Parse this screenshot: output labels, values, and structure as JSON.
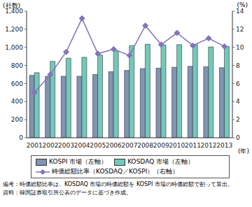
{
  "chart_data": {
    "type": "bar",
    "categories": [
      "2001",
      "2002",
      "2003",
      "2004",
      "2005",
      "2006",
      "2007",
      "2008",
      "2009",
      "2010",
      "2011",
      "2012",
      "2013"
    ],
    "series": [
      {
        "name": "KOSPI 市場（左軸）",
        "type": "bar",
        "color": "#8094b4",
        "values": [
          690,
          680,
          680,
          680,
          700,
          730,
          745,
          765,
          770,
          780,
          790,
          785,
          775
        ]
      },
      {
        "name": "KOSDAQ 市場（左軸）",
        "type": "bar",
        "color": "#72c9bb",
        "values": [
          720,
          845,
          880,
          890,
          915,
          960,
          1020,
          1035,
          1025,
          1030,
          1030,
          1005,
          1010
        ]
      },
      {
        "name": "時価総額比率（KOSDAQ／KOSPI）（右軸）",
        "type": "line",
        "axis": "y2",
        "marker": "diamond",
        "color": "#8474b8",
        "values": [
          5.0,
          7.0,
          9.5,
          13.2,
          9.3,
          9.8,
          9.1,
          12.4,
          10.3,
          11.6,
          10.2,
          11.0,
          10.1
        ]
      }
    ],
    "ylim": [
      0,
      1400
    ],
    "yticks": [
      0,
      200,
      400,
      600,
      800,
      {
        "value": 1000,
        "label": "1,000"
      },
      {
        "value": 1200,
        "label": "1,200"
      },
      {
        "value": 1400,
        "label": "1,400"
      }
    ],
    "y2lim": [
      0,
      14
    ],
    "y2ticks": [
      0,
      2,
      4,
      6,
      8,
      10,
      12,
      14
    ],
    "y_label": "(社数)",
    "y2_label": "(%)",
    "x_label": "(年)",
    "grid": false,
    "legend": "bottom",
    "notes": [
      "備考：時価総額比率は、KOSDAQ 市場の時価総額を KOSPI 市場の時価総額で割って算出。",
      "資料：韓国証券取引所公表のデータに基づき作成。"
    ]
  }
}
